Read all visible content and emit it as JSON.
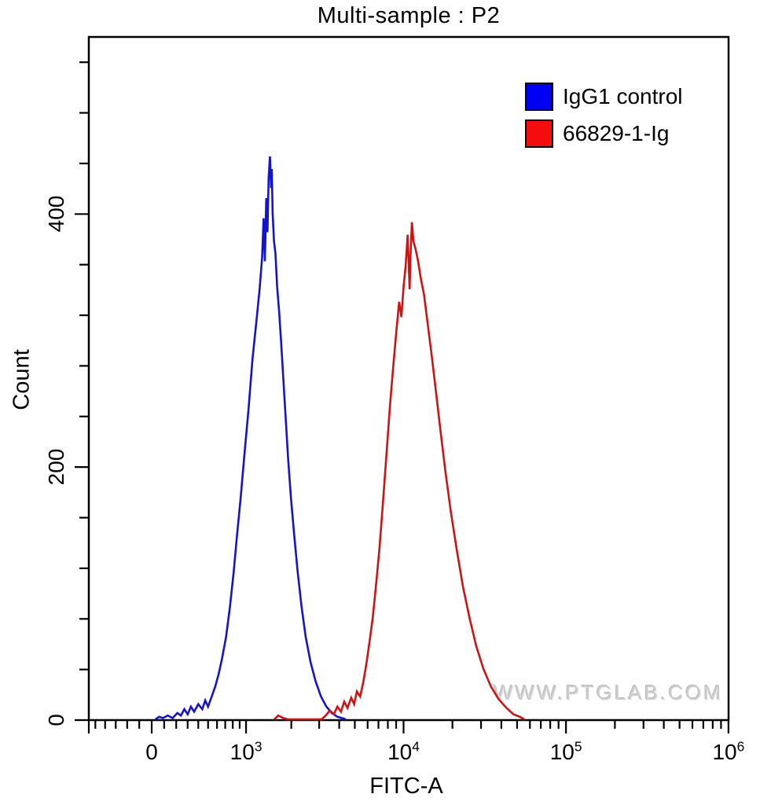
{
  "title": "Multi-sample : P2",
  "watermark": "WWW.PTGLAB.COM",
  "legend": {
    "items": [
      {
        "label": "IgG1 control",
        "color": "#0000f2"
      },
      {
        "label": "66829-1-Ig",
        "color": "#f50d0d"
      }
    ]
  },
  "chart_data": {
    "type": "line",
    "subtype": "flow-cytometry-histogram-overlay",
    "title": "Multi-sample : P2",
    "xlabel": "FITC-A",
    "ylabel": "Count",
    "grid": false,
    "legend_position": "top-right-inside",
    "x_scale": "biexponential",
    "y_scale": "linear",
    "y_axis": {
      "max": 540,
      "major_ticks": [
        {
          "text": "0",
          "value": 0
        },
        {
          "text": "200",
          "value": 200
        },
        {
          "text": "400",
          "value": 400
        }
      ],
      "minor_tick_values": [
        40,
        80,
        120,
        160,
        240,
        280,
        320,
        360,
        440,
        480,
        520
      ]
    },
    "x_axis": {
      "major_ticks": [
        {
          "text": "0",
          "sup": "",
          "value": 0
        },
        {
          "text": "10",
          "sup": "3",
          "value": 1000
        },
        {
          "text": "10",
          "sup": "4",
          "value": 10000
        },
        {
          "text": "10",
          "sup": "5",
          "value": 100000
        },
        {
          "text": "10",
          "sup": "6",
          "value": 1000000
        }
      ],
      "minor_tick_values": [
        -600,
        -500,
        -400,
        -300,
        -200,
        -100,
        100,
        200,
        300,
        400,
        500,
        600,
        700,
        800,
        900,
        2000,
        3000,
        4000,
        5000,
        6000,
        7000,
        8000,
        9000,
        20000,
        30000,
        40000,
        50000,
        60000,
        70000,
        80000,
        90000,
        200000,
        300000,
        400000,
        500000,
        600000,
        700000,
        800000,
        900000
      ]
    },
    "series": [
      {
        "name": "IgG1 control",
        "color": "#1414cf",
        "peak": {
          "x": 1480,
          "count": 445
        },
        "points": [
          [
            30,
            0
          ],
          [
            60,
            2
          ],
          [
            90,
            1
          ],
          [
            130,
            3
          ],
          [
            170,
            1
          ],
          [
            210,
            5
          ],
          [
            240,
            3
          ],
          [
            270,
            8
          ],
          [
            300,
            4
          ],
          [
            330,
            10
          ],
          [
            360,
            6
          ],
          [
            400,
            12
          ],
          [
            440,
            8
          ],
          [
            470,
            15
          ],
          [
            500,
            10
          ],
          [
            540,
            18
          ],
          [
            580,
            26
          ],
          [
            620,
            36
          ],
          [
            660,
            48
          ],
          [
            710,
            65
          ],
          [
            760,
            88
          ],
          [
            810,
            115
          ],
          [
            860,
            145
          ],
          [
            915,
            175
          ],
          [
            975,
            210
          ],
          [
            1040,
            245
          ],
          [
            1110,
            285
          ],
          [
            1180,
            315
          ],
          [
            1240,
            340
          ],
          [
            1290,
            365
          ],
          [
            1320,
            396
          ],
          [
            1345,
            362
          ],
          [
            1375,
            412
          ],
          [
            1400,
            385
          ],
          [
            1425,
            428
          ],
          [
            1455,
            445
          ],
          [
            1478,
            420
          ],
          [
            1495,
            435
          ],
          [
            1515,
            400
          ],
          [
            1545,
            378
          ],
          [
            1580,
            368
          ],
          [
            1620,
            342
          ],
          [
            1670,
            322
          ],
          [
            1720,
            298
          ],
          [
            1780,
            268
          ],
          [
            1840,
            238
          ],
          [
            1910,
            205
          ],
          [
            1990,
            175
          ],
          [
            2080,
            148
          ],
          [
            2190,
            118
          ],
          [
            2320,
            90
          ],
          [
            2470,
            65
          ],
          [
            2650,
            45
          ],
          [
            2850,
            30
          ],
          [
            3080,
            18
          ],
          [
            3330,
            10
          ],
          [
            3600,
            5
          ],
          [
            3900,
            2
          ],
          [
            4150,
            1
          ],
          [
            4400,
            0
          ]
        ]
      },
      {
        "name": "66829-1-Ig",
        "color": "#cf1212",
        "peak": {
          "x": 11260,
          "count": 393
        },
        "points": [
          [
            1550,
            0
          ],
          [
            1650,
            3
          ],
          [
            1780,
            1
          ],
          [
            1900,
            0
          ],
          [
            3100,
            0
          ],
          [
            3300,
            3
          ],
          [
            3500,
            7
          ],
          [
            3700,
            4
          ],
          [
            3900,
            10
          ],
          [
            4100,
            6
          ],
          [
            4300,
            14
          ],
          [
            4500,
            9
          ],
          [
            4750,
            17
          ],
          [
            4950,
            12
          ],
          [
            5150,
            22
          ],
          [
            5400,
            18
          ],
          [
            5650,
            30
          ],
          [
            5900,
            44
          ],
          [
            6150,
            60
          ],
          [
            6450,
            80
          ],
          [
            6750,
            105
          ],
          [
            7100,
            135
          ],
          [
            7450,
            170
          ],
          [
            7850,
            210
          ],
          [
            8250,
            248
          ],
          [
            8650,
            280
          ],
          [
            9050,
            308
          ],
          [
            9400,
            330
          ],
          [
            9700,
            318
          ],
          [
            10000,
            342
          ],
          [
            10300,
            358
          ],
          [
            10600,
            383
          ],
          [
            10900,
            340
          ],
          [
            11050,
            368
          ],
          [
            11260,
            393
          ],
          [
            11500,
            378
          ],
          [
            11850,
            372
          ],
          [
            12250,
            363
          ],
          [
            12800,
            348
          ],
          [
            13400,
            335
          ],
          [
            14100,
            312
          ],
          [
            14900,
            288
          ],
          [
            15800,
            260
          ],
          [
            16900,
            228
          ],
          [
            18100,
            196
          ],
          [
            19500,
            165
          ],
          [
            21200,
            135
          ],
          [
            23200,
            105
          ],
          [
            25500,
            80
          ],
          [
            28000,
            58
          ],
          [
            31000,
            40
          ],
          [
            34500,
            26
          ],
          [
            38500,
            16
          ],
          [
            43000,
            9
          ],
          [
            47500,
            4
          ],
          [
            52000,
            2
          ],
          [
            55500,
            0
          ]
        ]
      }
    ]
  }
}
